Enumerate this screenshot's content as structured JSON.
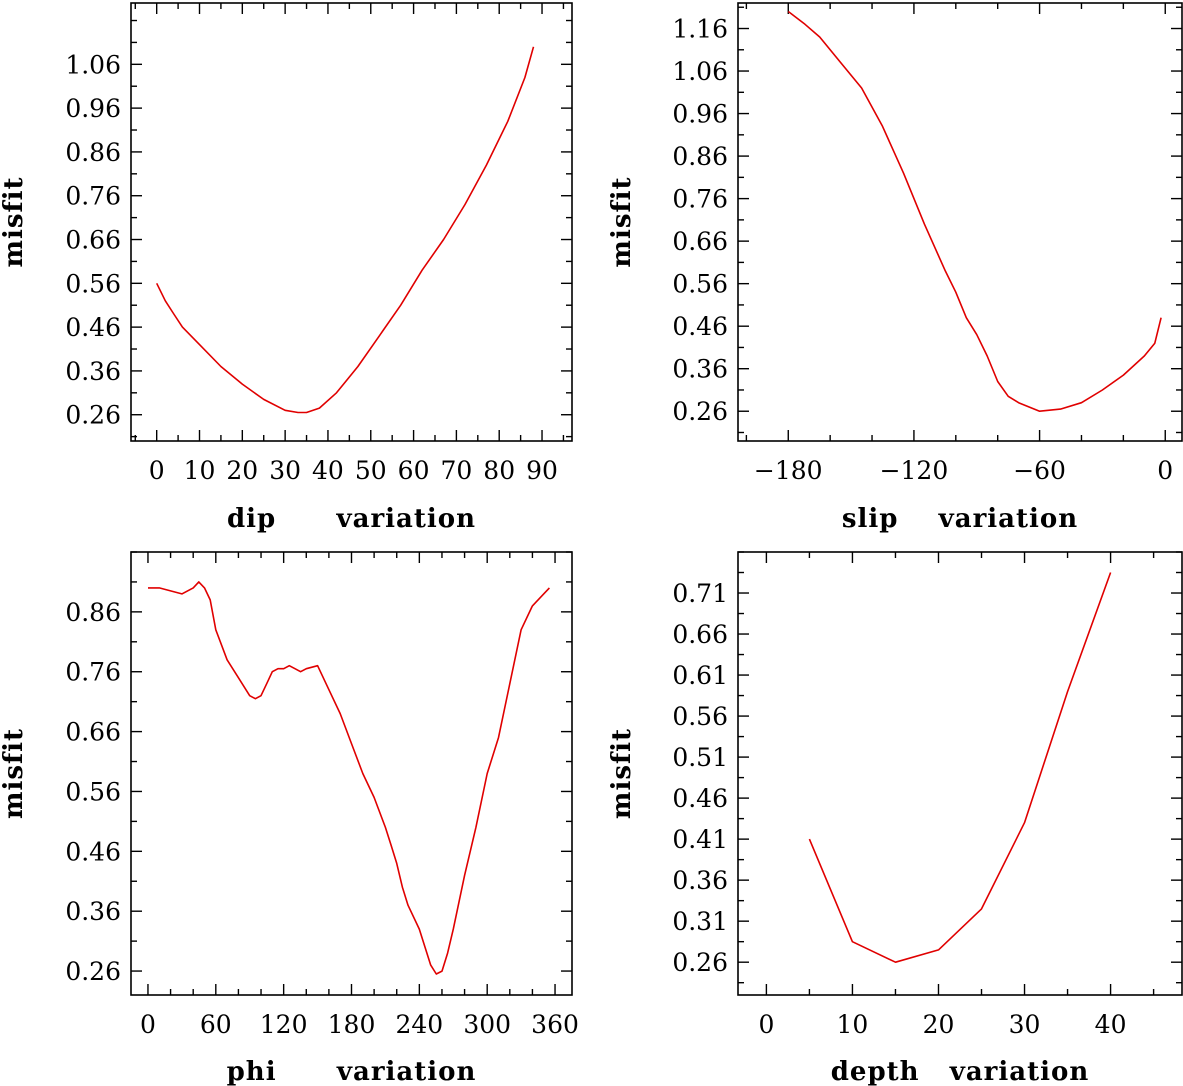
{
  "chart_data": [
    {
      "type": "line",
      "title": "",
      "xlabel": "dip      variation",
      "ylabel": "misfit",
      "xlim": [
        -6,
        97
      ],
      "ylim": [
        0.2,
        1.2
      ],
      "x_ticks": [
        0,
        10,
        20,
        30,
        40,
        50,
        60,
        70,
        80,
        90
      ],
      "x_minor_step": 5,
      "y_ticks": [
        0.26,
        0.36,
        0.46,
        0.56,
        0.66,
        0.76,
        0.86,
        0.96,
        1.06
      ],
      "y_tick_labels": [
        "0.26",
        "0.36",
        "0.46",
        "0.56",
        "0.66",
        "0.76",
        "0.86",
        "0.96",
        "1.06"
      ],
      "y_minor_step": 0.05,
      "series": [
        {
          "color": "#e00000",
          "x": [
            0,
            2,
            4,
            6,
            10,
            15,
            20,
            25,
            30,
            33,
            35,
            38,
            42,
            47,
            52,
            57,
            62,
            67,
            72,
            77,
            82,
            86,
            88
          ],
          "y": [
            0.56,
            0.52,
            0.49,
            0.46,
            0.42,
            0.37,
            0.33,
            0.295,
            0.27,
            0.265,
            0.265,
            0.275,
            0.31,
            0.37,
            0.44,
            0.51,
            0.59,
            0.66,
            0.74,
            0.83,
            0.93,
            1.03,
            1.1
          ]
        }
      ]
    },
    {
      "type": "line",
      "title": "",
      "xlabel": "slip    variation",
      "ylabel": "misfit",
      "xlim": [
        -204,
        8
      ],
      "ylim": [
        0.19,
        1.22
      ],
      "x_ticks": [
        -180,
        -120,
        -60,
        0
      ],
      "x_tick_labels": [
        "−180",
        "−120",
        "−60",
        "0"
      ],
      "x_minor_step": 20,
      "y_ticks": [
        0.26,
        0.36,
        0.46,
        0.56,
        0.66,
        0.76,
        0.86,
        0.96,
        1.06,
        1.16
      ],
      "y_tick_labels": [
        "0.26",
        "0.36",
        "0.46",
        "0.56",
        "0.66",
        "0.76",
        "0.86",
        "0.96",
        "1.06",
        "1.16"
      ],
      "y_minor_step": 0.05,
      "series": [
        {
          "color": "#e00000",
          "x": [
            -180,
            -172,
            -165,
            -155,
            -145,
            -135,
            -125,
            -115,
            -105,
            -100,
            -95,
            -90,
            -85,
            -80,
            -75,
            -70,
            -65,
            -60,
            -50,
            -40,
            -30,
            -20,
            -10,
            -5,
            -2
          ],
          "y": [
            1.2,
            1.17,
            1.14,
            1.08,
            1.02,
            0.93,
            0.82,
            0.7,
            0.59,
            0.54,
            0.48,
            0.44,
            0.39,
            0.33,
            0.295,
            0.28,
            0.27,
            0.26,
            0.265,
            0.28,
            0.31,
            0.345,
            0.39,
            0.42,
            0.48
          ]
        }
      ]
    },
    {
      "type": "line",
      "title": "",
      "xlabel": "phi      variation",
      "ylabel": "misfit",
      "xlim": [
        -15,
        375
      ],
      "ylim": [
        0.22,
        0.96
      ],
      "x_ticks": [
        0,
        60,
        120,
        180,
        240,
        300,
        360
      ],
      "x_minor_step": 20,
      "y_ticks": [
        0.26,
        0.36,
        0.46,
        0.56,
        0.66,
        0.76,
        0.86
      ],
      "y_tick_labels": [
        "0.26",
        "0.36",
        "0.46",
        "0.56",
        "0.66",
        "0.76",
        "0.86"
      ],
      "y_minor_step": 0.05,
      "series": [
        {
          "color": "#e00000",
          "x": [
            0,
            10,
            20,
            30,
            40,
            45,
            50,
            55,
            60,
            70,
            80,
            90,
            95,
            100,
            105,
            110,
            115,
            120,
            125,
            130,
            135,
            140,
            150,
            160,
            170,
            180,
            190,
            200,
            210,
            215,
            220,
            225,
            230,
            240,
            245,
            250,
            255,
            260,
            265,
            270,
            280,
            290,
            300,
            310,
            320,
            330,
            340,
            350,
            355
          ],
          "y": [
            0.9,
            0.9,
            0.895,
            0.89,
            0.9,
            0.91,
            0.9,
            0.88,
            0.83,
            0.78,
            0.75,
            0.72,
            0.715,
            0.72,
            0.74,
            0.76,
            0.765,
            0.765,
            0.77,
            0.765,
            0.76,
            0.765,
            0.77,
            0.73,
            0.69,
            0.64,
            0.59,
            0.55,
            0.5,
            0.47,
            0.44,
            0.4,
            0.37,
            0.33,
            0.3,
            0.27,
            0.255,
            0.26,
            0.29,
            0.33,
            0.42,
            0.5,
            0.59,
            0.65,
            0.74,
            0.83,
            0.87,
            0.89,
            0.9
          ]
        }
      ]
    },
    {
      "type": "line",
      "title": "",
      "xlabel": "depth   variation",
      "ylabel": "misfit",
      "xlim": [
        -3.3,
        48.3
      ],
      "ylim": [
        0.22,
        0.76
      ],
      "x_ticks": [
        0,
        10,
        20,
        30,
        40
      ],
      "x_minor_step": 5,
      "y_ticks": [
        0.26,
        0.31,
        0.36,
        0.41,
        0.46,
        0.51,
        0.56,
        0.61,
        0.66,
        0.71
      ],
      "y_tick_labels": [
        "0.26",
        "0.31",
        "0.36",
        "0.41",
        "0.46",
        "0.51",
        "0.56",
        "0.61",
        "0.66",
        "0.71"
      ],
      "y_minor_step": 0.025,
      "series": [
        {
          "color": "#e00000",
          "x": [
            5,
            10,
            15,
            20,
            25,
            30,
            35,
            40
          ],
          "y": [
            0.41,
            0.285,
            0.26,
            0.275,
            0.325,
            0.43,
            0.59,
            0.735
          ]
        }
      ]
    }
  ]
}
